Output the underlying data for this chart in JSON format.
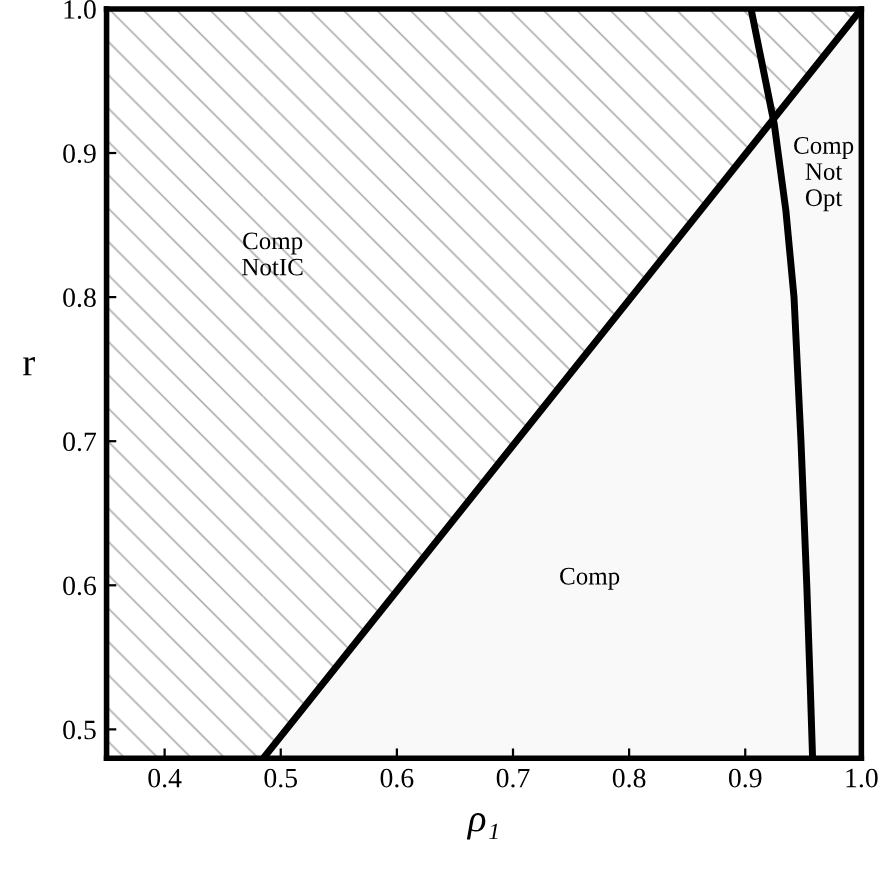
{
  "chart_data": {
    "type": "line",
    "xlabel": "ρ₁",
    "ylabel": "r",
    "xlim": [
      0.35,
      1.0
    ],
    "ylim": [
      0.48,
      1.0
    ],
    "xticks": [
      0.4,
      0.5,
      0.6,
      0.7,
      0.8,
      0.9,
      {
        "value": 1.0,
        "label": "1.0"
      }
    ],
    "yticks": [
      0.5,
      0.6,
      0.7,
      0.8,
      0.9,
      {
        "value": 1.0,
        "label": "1.0"
      }
    ],
    "grid": false,
    "legend": false,
    "marker": "none",
    "line_style": "solid",
    "series": [
      {
        "color": "#000000",
        "x": [
          0.485,
          1.0
        ],
        "values": [
          0.48,
          1.0
        ],
        "lower": [
          0.48,
          1.0
        ],
        "upper": [
          1.0,
          1.0
        ]
      },
      {
        "color": "#000000",
        "x": [
          0.905,
          0.915,
          0.925,
          0.935,
          0.942,
          0.948,
          0.953,
          0.956,
          0.958
        ],
        "values": [
          1.0,
          0.96,
          0.92,
          0.86,
          0.8,
          0.7,
          0.6,
          0.53,
          0.48
        ]
      }
    ],
    "bands": [
      {
        "axis": "x",
        "from": 0.35,
        "to": 0.485
      }
    ],
    "annotations": [
      "Comp\nNotIC",
      "Comp",
      "Comp\nNot\nOpt"
    ]
  }
}
